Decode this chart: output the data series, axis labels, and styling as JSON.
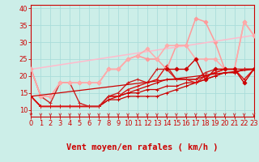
{
  "xlabel": "Vent moyen/en rafales ( km/h )",
  "xlim": [
    0,
    23
  ],
  "ylim": [
    8,
    41
  ],
  "yticks": [
    10,
    15,
    20,
    25,
    30,
    35,
    40
  ],
  "xticks": [
    0,
    1,
    2,
    3,
    4,
    5,
    6,
    7,
    8,
    9,
    10,
    11,
    12,
    13,
    14,
    15,
    16,
    17,
    18,
    19,
    20,
    21,
    22,
    23
  ],
  "bg_color": "#cceee8",
  "grid_color": "#aaddda",
  "series": [
    {
      "x": [
        0,
        1,
        2,
        3,
        4,
        5,
        6,
        7,
        8,
        9,
        10,
        11,
        12,
        13,
        14,
        15,
        16,
        17,
        18,
        19,
        20,
        21,
        22,
        23
      ],
      "y": [
        14,
        11,
        11,
        11,
        11,
        11,
        11,
        11,
        13,
        13,
        14,
        14,
        14,
        14,
        15,
        16,
        17,
        18,
        19,
        20,
        21,
        21,
        22,
        22
      ],
      "color": "#cc0000",
      "lw": 0.9,
      "marker": "+",
      "ms": 3.5
    },
    {
      "x": [
        0,
        1,
        2,
        3,
        4,
        5,
        6,
        7,
        8,
        9,
        10,
        11,
        12,
        13,
        14,
        15,
        16,
        17,
        18,
        19,
        20,
        21,
        22,
        23
      ],
      "y": [
        14,
        11,
        11,
        11,
        11,
        11,
        11,
        11,
        13,
        14,
        15,
        15,
        16,
        16,
        17,
        17,
        18,
        18,
        19,
        20,
        21,
        21,
        22,
        22
      ],
      "color": "#cc0000",
      "lw": 0.9,
      "marker": "+",
      "ms": 3.5
    },
    {
      "x": [
        0,
        1,
        2,
        3,
        4,
        5,
        6,
        7,
        8,
        9,
        10,
        11,
        12,
        13,
        14,
        15,
        16,
        17,
        18,
        19,
        20,
        21,
        22,
        23
      ],
      "y": [
        14,
        11,
        11,
        11,
        11,
        11,
        11,
        11,
        14,
        14,
        15,
        16,
        17,
        18,
        19,
        19,
        19,
        19,
        20,
        21,
        22,
        22,
        22,
        22
      ],
      "color": "#cc0000",
      "lw": 0.9,
      "marker": "+",
      "ms": 3.5
    },
    {
      "x": [
        0,
        1,
        2,
        3,
        4,
        5,
        6,
        7,
        8,
        9,
        10,
        11,
        12,
        13,
        14,
        15,
        16,
        17,
        18,
        19,
        20,
        21,
        22,
        23
      ],
      "y": [
        14,
        11,
        11,
        11,
        11,
        11,
        11,
        11,
        14,
        14,
        16,
        17,
        18,
        19,
        23,
        19,
        19,
        18,
        20,
        21,
        22,
        22,
        19,
        22
      ],
      "color": "#dd1111",
      "lw": 1.0,
      "marker": "+",
      "ms": 3.5
    },
    {
      "x": [
        0,
        1,
        2,
        3,
        4,
        5,
        6,
        7,
        8,
        9,
        10,
        11,
        12,
        13,
        14,
        15,
        16,
        17,
        18,
        19,
        20,
        21,
        22,
        23
      ],
      "y": [
        22,
        14,
        12,
        18,
        18,
        12,
        11,
        11,
        14,
        15,
        18,
        19,
        18,
        22,
        22,
        19,
        19,
        19,
        21,
        22,
        22,
        22,
        22,
        22
      ],
      "color": "#cc2222",
      "lw": 1.0,
      "marker": "+",
      "ms": 3.5
    },
    {
      "x": [
        0,
        1,
        2,
        3,
        4,
        5,
        6,
        7,
        8,
        9,
        10,
        11,
        12,
        13,
        14,
        15,
        16,
        17,
        18,
        19,
        20,
        21,
        22,
        23
      ],
      "y": [
        22,
        14,
        14,
        18,
        18,
        18,
        18,
        18,
        22,
        22,
        25,
        26,
        25,
        25,
        22,
        29,
        29,
        37,
        36,
        30,
        22,
        22,
        36,
        32
      ],
      "color": "#ff9999",
      "lw": 1.1,
      "marker": "D",
      "ms": 2.5
    },
    {
      "x": [
        0,
        23
      ],
      "y": [
        22,
        32
      ],
      "color": "#ffbbcc",
      "lw": 1.1,
      "marker": null,
      "ms": 0
    },
    {
      "x": [
        0,
        1,
        2,
        3,
        4,
        5,
        6,
        7,
        8,
        9,
        10,
        11,
        12,
        13,
        14,
        15,
        16,
        17,
        18,
        19,
        20,
        21,
        22,
        23
      ],
      "y": [
        22,
        14,
        14,
        18,
        18,
        18,
        18,
        18,
        22,
        22,
        25,
        26,
        28,
        25,
        29,
        29,
        29,
        25,
        25,
        25,
        22,
        22,
        36,
        32
      ],
      "color": "#ffaaaa",
      "lw": 1.1,
      "marker": "D",
      "ms": 2.5
    },
    {
      "x": [
        14,
        15,
        16,
        17,
        18,
        19,
        20,
        21,
        22,
        23
      ],
      "y": [
        22,
        22,
        22,
        25,
        19,
        22,
        22,
        22,
        18,
        22
      ],
      "color": "#cc0000",
      "lw": 1.0,
      "marker": "D",
      "ms": 2.5
    },
    {
      "x": [
        0,
        23
      ],
      "y": [
        14,
        22
      ],
      "color": "#cc0000",
      "lw": 0.9,
      "marker": null,
      "ms": 0
    }
  ],
  "arrow_color": "#cc2222",
  "xlabel_color": "#cc0000",
  "xlabel_fontsize": 7.5,
  "tick_fontsize": 6,
  "tick_color": "#cc0000",
  "axis_color": "#cc0000"
}
